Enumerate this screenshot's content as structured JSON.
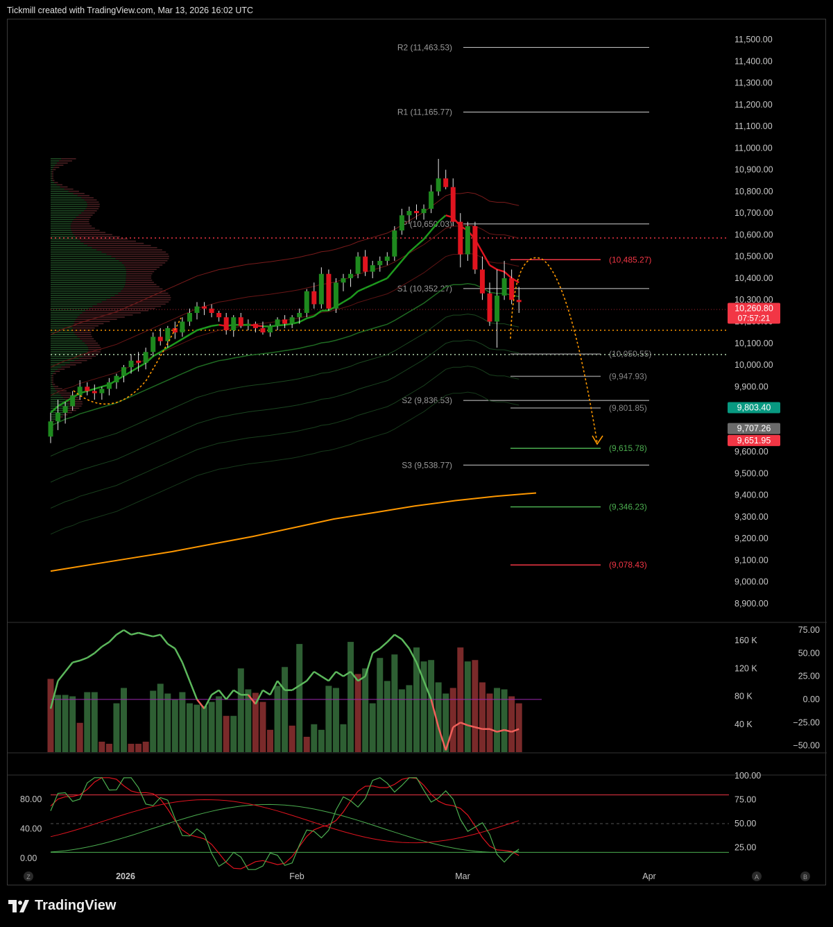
{
  "header": {
    "attribution": "Tickmill created with TradingView.com, Mar 13, 2026 16:02 UTC"
  },
  "brand": {
    "name": "TradingView"
  },
  "chart_data": [
    {
      "type": "candlestick",
      "panel": "price",
      "y_axis_ticks": [
        "11,500.00",
        "11,400.00",
        "11,300.00",
        "11,200.00",
        "11,100.00",
        "11,000.00",
        "10,900.00",
        "10,800.00",
        "10,700.00",
        "10,600.00",
        "10,500.00",
        "10,400.00",
        "10,300.00",
        "10,200.00",
        "10,100.00",
        "10,000.00",
        "9,900.00",
        "9,800.00",
        "9,700.00",
        "9,600.00",
        "9,500.00",
        "9,400.00",
        "9,300.00",
        "9,200.00",
        "9,100.00",
        "9,000.00",
        "8,900.00"
      ],
      "ylim": [
        8880,
        11560
      ],
      "x_axis_ticks": [
        "2026",
        "Feb",
        "Mar",
        "Apr"
      ],
      "pivots": [
        {
          "label": "R2 (11,463.53)",
          "value": 11463.53
        },
        {
          "label": "R1 (11,165.77)",
          "value": 11165.77
        },
        {
          "label": "P (10,650.03)",
          "value": 10650.03
        },
        {
          "label": "S1 (10,352.27)",
          "value": 10352.27
        },
        {
          "label": "S2 (9,836.53)",
          "value": 9836.53
        },
        {
          "label": "S3 (9,538.77)",
          "value": 9538.77
        }
      ],
      "levels": [
        {
          "label": "(10,485.27)",
          "value": 10485.27,
          "color": "#f23645"
        },
        {
          "label": "(10,050.55)",
          "value": 10050.55,
          "color": "#888888"
        },
        {
          "label": "(9,947.93)",
          "value": 9947.93,
          "color": "#888888"
        },
        {
          "label": "(9,801.85)",
          "value": 9801.85,
          "color": "#888888"
        },
        {
          "label": "(9,615.78)",
          "value": 9615.78,
          "color": "#4caf50"
        },
        {
          "label": "(9,346.23)",
          "value": 9346.23,
          "color": "#4caf50"
        },
        {
          "label": "(9,078.43)",
          "value": 9078.43,
          "color": "#f23645"
        }
      ],
      "price_tags": [
        {
          "text": "10,260.80",
          "sub": "07:57:21",
          "value": 10260.8,
          "color": "#f23645"
        },
        {
          "text": "9,803.40",
          "value": 9803.4,
          "color": "#089981"
        },
        {
          "text": "9,707.26",
          "value": 9707.26,
          "color": "#6b6b6b"
        },
        {
          "text": "9,651.95",
          "value": 9651.95,
          "color": "#f23645"
        }
      ],
      "candles": [
        [
          9670,
          9780,
          9640,
          9740
        ],
        [
          9740,
          9840,
          9700,
          9780
        ],
        [
          9780,
          9830,
          9730,
          9810
        ],
        [
          9810,
          9880,
          9790,
          9860
        ],
        [
          9860,
          9930,
          9840,
          9900
        ],
        [
          9900,
          9920,
          9860,
          9880
        ],
        [
          9880,
          9910,
          9840,
          9870
        ],
        [
          9870,
          9900,
          9840,
          9890
        ],
        [
          9890,
          9940,
          9860,
          9920
        ],
        [
          9920,
          9960,
          9890,
          9950
        ],
        [
          9950,
          10000,
          9920,
          9990
        ],
        [
          9990,
          10050,
          9960,
          10020
        ],
        [
          10020,
          10060,
          9970,
          10010
        ],
        [
          10010,
          10080,
          9980,
          10060
        ],
        [
          10060,
          10150,
          10040,
          10130
        ],
        [
          10130,
          10170,
          10090,
          10110
        ],
        [
          10110,
          10180,
          10080,
          10170
        ],
        [
          10170,
          10200,
          10120,
          10150
        ],
        [
          10150,
          10220,
          10130,
          10200
        ],
        [
          10200,
          10260,
          10180,
          10240
        ],
        [
          10240,
          10290,
          10210,
          10270
        ],
        [
          10270,
          10290,
          10230,
          10260
        ],
        [
          10260,
          10280,
          10220,
          10240
        ],
        [
          10240,
          10250,
          10200,
          10220
        ],
        [
          10220,
          10240,
          10140,
          10160
        ],
        [
          10160,
          10230,
          10130,
          10220
        ],
        [
          10220,
          10240,
          10170,
          10180
        ],
        [
          10180,
          10210,
          10160,
          10190
        ],
        [
          10190,
          10200,
          10150,
          10170
        ],
        [
          10170,
          10200,
          10140,
          10150
        ],
        [
          10150,
          10190,
          10130,
          10180
        ],
        [
          10180,
          10220,
          10160,
          10210
        ],
        [
          10210,
          10230,
          10170,
          10190
        ],
        [
          10190,
          10230,
          10170,
          10220
        ],
        [
          10220,
          10260,
          10190,
          10240
        ],
        [
          10240,
          10350,
          10220,
          10340
        ],
        [
          10340,
          10380,
          10260,
          10280
        ],
        [
          10280,
          10450,
          10260,
          10420
        ],
        [
          10420,
          10440,
          10250,
          10260
        ],
        [
          10260,
          10400,
          10240,
          10380
        ],
        [
          10380,
          10420,
          10340,
          10400
        ],
        [
          10400,
          10440,
          10360,
          10420
        ],
        [
          10420,
          10520,
          10400,
          10500
        ],
        [
          10500,
          10530,
          10410,
          10430
        ],
        [
          10430,
          10480,
          10400,
          10460
        ],
        [
          10460,
          10500,
          10430,
          10480
        ],
        [
          10480,
          10520,
          10460,
          10500
        ],
        [
          10500,
          10640,
          10480,
          10620
        ],
        [
          10620,
          10720,
          10600,
          10690
        ],
        [
          10690,
          10730,
          10650,
          10710
        ],
        [
          10710,
          10740,
          10670,
          10700
        ],
        [
          10700,
          10740,
          10670,
          10720
        ],
        [
          10720,
          10830,
          10700,
          10800
        ],
        [
          10800,
          10950,
          10780,
          10860
        ],
        [
          10860,
          10900,
          10810,
          10820
        ],
        [
          10820,
          10860,
          10640,
          10660
        ],
        [
          10660,
          10700,
          10450,
          10510
        ],
        [
          10510,
          10660,
          10480,
          10640
        ],
        [
          10640,
          10660,
          10420,
          10440
        ],
        [
          10440,
          10500,
          10300,
          10330
        ],
        [
          10330,
          10380,
          10180,
          10200
        ],
        [
          10200,
          10440,
          10080,
          10320
        ],
        [
          10320,
          10480,
          10300,
          10400
        ],
        [
          10400,
          10440,
          10280,
          10300
        ],
        [
          10300,
          10360,
          10240,
          10290
        ]
      ],
      "ema_fast": [
        9780,
        9810,
        9830,
        9850,
        9870,
        9880,
        9890,
        9900,
        9910,
        9930,
        9950,
        9970,
        9990,
        10010,
        10040,
        10060,
        10080,
        10100,
        10120,
        10140,
        10160,
        10170,
        10180,
        10185,
        10180,
        10185,
        10185,
        10185,
        10182,
        10178,
        10178,
        10182,
        10185,
        10190,
        10198,
        10215,
        10225,
        10250,
        10252,
        10270,
        10290,
        10310,
        10340,
        10355,
        10370,
        10385,
        10400,
        10440,
        10480,
        10520,
        10550,
        10580,
        10620,
        10660,
        10690,
        10680,
        10640,
        10620,
        10580,
        10520,
        10460,
        10440,
        10430,
        10400,
        10380
      ],
      "ema_slow": [
        9720,
        9735,
        9750,
        9760,
        9775,
        9785,
        9795,
        9805,
        9815,
        9825,
        9840,
        9855,
        9870,
        9885,
        9900,
        9915,
        9930,
        9945,
        9960,
        9975,
        9990,
        10000,
        10010,
        10020,
        10025,
        10032,
        10038,
        10044,
        10048,
        10052,
        10056,
        10061,
        10066,
        10071,
        10077,
        10085,
        10092,
        10102,
        10106,
        10114,
        10124,
        10134,
        10148,
        10158,
        10168,
        10178,
        10188,
        10205,
        10225,
        10245,
        10265,
        10285,
        10310,
        10335,
        10360,
        10370,
        10370,
        10375,
        10370,
        10355,
        10335,
        10330,
        10330,
        10322,
        10315
      ],
      "sma200": [
        9050,
        9080,
        9110,
        9140,
        9175,
        9210,
        9250,
        9290,
        9320,
        9350,
        9375,
        9395,
        9410
      ],
      "volume_profile_note": "left side histogram"
    },
    {
      "type": "bar+line",
      "panel": "volume",
      "y_axis_left_ticks": [
        "160 K",
        "120 K",
        "80 K",
        "40 K"
      ],
      "y_axis_right_ticks": [
        "75.00",
        "50.00",
        "25.00",
        "0.00",
        "−25.00",
        "−50.00"
      ],
      "volume": [
        105,
        82,
        82,
        80,
        42,
        86,
        86,
        15,
        12,
        70,
        92,
        12,
        12,
        15,
        88,
        98,
        84,
        75,
        86,
        70,
        68,
        66,
        72,
        80,
        52,
        52,
        120,
        90,
        85,
        72,
        32,
        95,
        122,
        38,
        155,
        22,
        40,
        32,
        95,
        92,
        40,
        158,
        112,
        120,
        70,
        135,
        102,
        140,
        90,
        96,
        150,
        130,
        132,
        100,
        84,
        92,
        150,
        130,
        132,
        100,
        84,
        92,
        90,
        80,
        70
      ],
      "volume_up": [
        0,
        1,
        1,
        1,
        0,
        1,
        1,
        0,
        0,
        1,
        1,
        0,
        0,
        0,
        1,
        1,
        1,
        1,
        1,
        1,
        1,
        1,
        1,
        1,
        0,
        1,
        1,
        1,
        0,
        0,
        0,
        1,
        1,
        0,
        1,
        0,
        1,
        1,
        1,
        1,
        1,
        1,
        0,
        1,
        1,
        1,
        1,
        1,
        1,
        1,
        1,
        1,
        1,
        1,
        1,
        0,
        0,
        1,
        0,
        0,
        0,
        1,
        1,
        0,
        0
      ],
      "oscillator": [
        -10,
        20,
        30,
        40,
        42,
        45,
        50,
        57,
        62,
        70,
        75,
        70,
        72,
        70,
        68,
        70,
        60,
        55,
        40,
        20,
        0,
        -10,
        5,
        10,
        0,
        10,
        5,
        5,
        -5,
        10,
        5,
        20,
        10,
        10,
        15,
        20,
        30,
        25,
        20,
        30,
        25,
        30,
        20,
        25,
        50,
        55,
        62,
        70,
        65,
        55,
        40,
        20,
        0,
        -30,
        -55,
        -30,
        -25,
        -28,
        -30,
        -32,
        -32,
        -35,
        -33,
        -35,
        -32
      ],
      "oscillator_ylim": [
        -55,
        80
      ],
      "volume_ylim": [
        0,
        175
      ]
    },
    {
      "type": "line",
      "panel": "stochastic_rsi",
      "y_axis_left_ticks": [
        "80.00",
        "40.00",
        "0.00"
      ],
      "y_axis_right_ticks": [
        "100.00",
        "75.00",
        "50.00",
        "25.00"
      ],
      "hlines": [
        80,
        20
      ],
      "mid": 50
    }
  ],
  "time_axis_buttons": {
    "left": "Z",
    "a": "A",
    "b": "B"
  },
  "colors": {
    "up": "#1e8a1e",
    "down": "#e0141f",
    "accent": "#ff9800",
    "vol_up": "#2e5f33",
    "vol_down": "#7a2a2a"
  }
}
